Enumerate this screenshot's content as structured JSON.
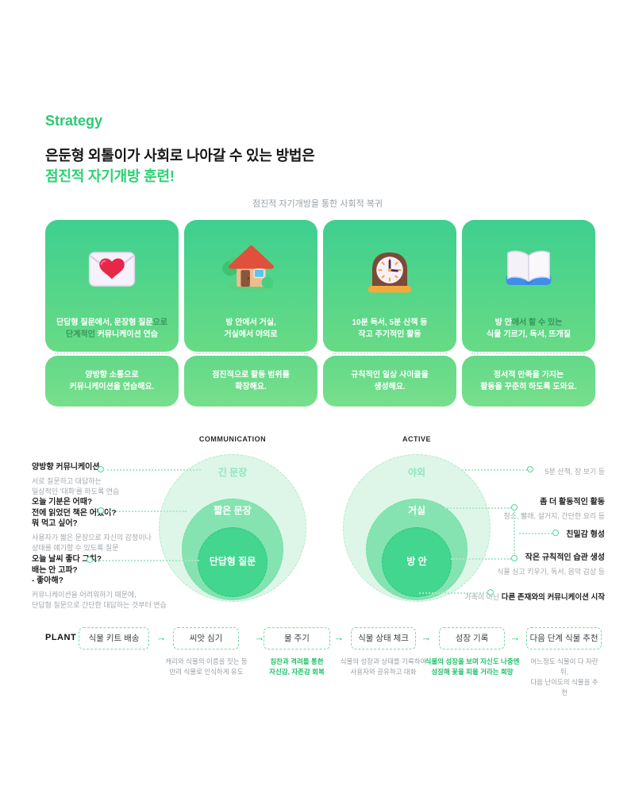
{
  "colors": {
    "accent_green": "#2cc973",
    "headline_green": "#2bd273",
    "card_gradient_top": "#3ecf90",
    "card_gradient_bottom": "#68da85",
    "ring_outer": "#ddf6e8",
    "ring_middle": "#85e3b1",
    "ring_inner": "#43d68f",
    "caption_green": "#1fc268",
    "text_gray": "#9aa0a6"
  },
  "header": {
    "eyebrow": "Strategy",
    "title_line1": "은둔형 외톨이가 사회로 나아갈 수 있는 방법은",
    "title_line2": "점진적 자기개방 훈련!",
    "subtitle": "점진적 자기개방을 통한 사회적 복귀"
  },
  "cards": [
    {
      "icon": "love-letter",
      "top_lines": [
        [
          {
            "t": "단답형 질문에서, 문장형 질문",
            "c": "strong"
          },
          {
            "t": "으로",
            "c": "dim"
          }
        ],
        [
          {
            "t": "단계적인 ",
            "c": "dim"
          },
          {
            "t": "커뮤니케이션 연습",
            "c": "strong"
          }
        ]
      ],
      "bottom_text": "양방향 소통으로\n커뮤니케이션을 연습해요."
    },
    {
      "icon": "house",
      "top_lines": [
        [
          {
            "t": "방 안에서 거실,",
            "c": "strong"
          }
        ],
        [
          {
            "t": "거실에서 야외로",
            "c": "strong"
          }
        ]
      ],
      "bottom_text": "점진적으로 활동 범위를\n확장해요."
    },
    {
      "icon": "clock",
      "top_lines": [
        [
          {
            "t": "10분 독서, 5분 산책 등",
            "c": "strong"
          }
        ],
        [
          {
            "t": "작고 주기적인 활동",
            "c": "strong"
          }
        ]
      ],
      "bottom_text": "규칙적인 일상 사이클을\n생성해요."
    },
    {
      "icon": "book",
      "top_lines": [
        [
          {
            "t": "방 안",
            "c": "strong"
          },
          {
            "t": "에서 할 수 있는",
            "c": "dim"
          }
        ],
        [
          {
            "t": "식물 기르기, 독서, 뜨개질",
            "c": "strong"
          }
        ]
      ],
      "bottom_text": "정서적 만족을 가지는\n활동을 꾸준히 하도록 도와요."
    }
  ],
  "diagrams": {
    "left": {
      "title": "COMMUNICATION",
      "rings": [
        {
          "label": "긴 문장"
        },
        {
          "label": "짧은 문장"
        },
        {
          "label": "단답형 질문"
        }
      ]
    },
    "right": {
      "title": "ACTIVE",
      "rings": [
        {
          "label": "야외"
        },
        {
          "label": "거실"
        },
        {
          "label": "방 안"
        }
      ]
    }
  },
  "annotations": {
    "left": [
      {
        "heading": "양방향 커뮤니케이션",
        "body": "서로 질문하고 대답하는\n일상적인 '대화'를 하도록 연습"
      },
      {
        "heading": "오늘 기분은 어때?\n전에 읽었던 책은 어땠어?\n뭐 먹고 싶어?",
        "body": "사용자가 짧은 문장으로 자신의 감정이나\n상태를 얘기할 수 있도록 질문"
      },
      {
        "heading": "오늘 날씨 좋다 그치?\n배는 안 고파?\n- 좋아해?",
        "body": "커뮤니케이션을 어려워하기 때문에,\n단답형 질문으로 간단한 대답하는 것부터 연습"
      }
    ],
    "right": [
      {
        "text": "5분 산책, 장 보기 등"
      },
      {
        "heading": "좀 더 활동적인 활동",
        "body": "청소, 빨래, 설거지, 간단한 요리 등"
      },
      {
        "heading": "친밀감 형성"
      },
      {
        "heading": "작은 규칙적인 습관 생성",
        "body": "식물 심고 키우기, 독서, 음악 감상 등"
      },
      {
        "segments": [
          [
            {
              "t": "가족이 아닌 ",
              "c": "gray"
            },
            {
              "t": "다른 존재와의 커뮤니케이션 시작",
              "c": "dark"
            }
          ]
        ]
      }
    ]
  },
  "flow": {
    "label": "PLANT",
    "arrow": "→",
    "steps": [
      {
        "box": "식물 키트 배송"
      },
      {
        "box": "씨앗 심기",
        "caption": "캐리와 식물의 이름을 짓는 등\n반려 식물로 인식하게 유도",
        "caption_style": "gray"
      },
      {
        "box": "물 주기",
        "caption": "칭찬과 격려를 통한\n자신감, 자존감 회복",
        "caption_style": "green"
      },
      {
        "box": "식물 상태 체크",
        "caption": "식물의 성장과 상태를 기록하여\n사용자와 공유하고 대화",
        "caption_style": "gray"
      },
      {
        "box": "성장 기록",
        "caption": "식물의 성장을 보며 자신도 나중엔\n성장해 꽃을 피울 거라는 희망",
        "caption_style": "green"
      },
      {
        "box": "다음 단계 식물 추천",
        "caption": "어느정도 식물이 다 자란 뒤,\n다음 난이도의 식물을 추천",
        "caption_style": "gray"
      }
    ]
  }
}
